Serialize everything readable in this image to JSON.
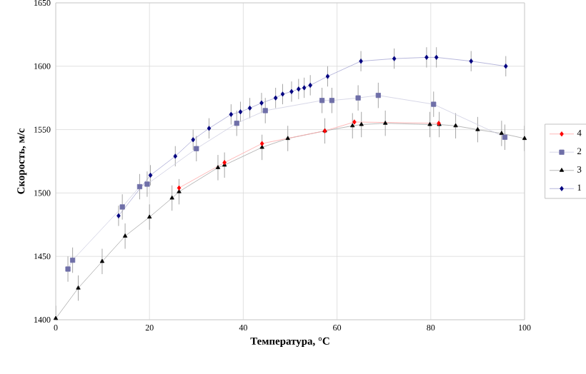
{
  "chart_data": {
    "type": "line",
    "xlabel": "Температура, °C",
    "ylabel": "Скорость, м/с",
    "xlim": [
      0,
      100
    ],
    "xticks": [
      0,
      20,
      40,
      60,
      80,
      100
    ],
    "ylim": [
      1400,
      1650
    ],
    "yticks": [
      1400,
      1450,
      1500,
      1550,
      1600,
      1650
    ],
    "grid": true,
    "legend": "right",
    "series": [
      {
        "name": "4",
        "color": "#ff0000",
        "marker": "diamond",
        "x": [
          26.3,
          36,
          44,
          57.4,
          63.7,
          81.7
        ],
        "values": [
          1504,
          1524,
          1539,
          1549,
          1556,
          1555
        ]
      },
      {
        "name": "2",
        "color": "#6f6fa8",
        "marker": "square",
        "x": [
          2.6,
          3.6,
          14.2,
          17.9,
          19.5,
          30,
          38.6,
          44.7,
          56.8,
          58.9,
          64.5,
          68.8,
          80.6,
          95.8
        ],
        "values": [
          1440,
          1447,
          1489,
          1505,
          1507,
          1535,
          1555,
          1565,
          1573,
          1573,
          1575,
          1577,
          1570,
          1544
        ],
        "errors": [
          10,
          10,
          10,
          10,
          10,
          10,
          10,
          10,
          10,
          10,
          10,
          10,
          10,
          10
        ]
      },
      {
        "name": "3",
        "color": "#000000",
        "marker": "triangle",
        "x": [
          0,
          4.8,
          9.9,
          14.8,
          20,
          24.8,
          26.3,
          34.6,
          36,
          44,
          49.5,
          57.4,
          63.3,
          65.2,
          70.3,
          79.8,
          81.8,
          85.3,
          90,
          95.1,
          100
        ],
        "values": [
          1401,
          1425,
          1446,
          1466,
          1481,
          1496,
          1501,
          1520,
          1522,
          1536,
          1543,
          1549,
          1553,
          1554,
          1555,
          1554,
          1554,
          1553,
          1550,
          1547,
          1543
        ],
        "errors": [
          10,
          10,
          10,
          10,
          10,
          10,
          10,
          10,
          10,
          10,
          10,
          10,
          10,
          10,
          10,
          10,
          10,
          10,
          10,
          10,
          10
        ]
      },
      {
        "name": "1",
        "color": "#000080",
        "marker": "diamond",
        "x": [
          13.4,
          20.2,
          25.5,
          29.3,
          32.7,
          37.4,
          39.4,
          41.4,
          43.9,
          46.9,
          48.4,
          50.3,
          51.8,
          53,
          54.3,
          58.0,
          65.1,
          72.2,
          79.1,
          81.2,
          88.6,
          96
        ],
        "values": [
          1482,
          1514,
          1529,
          1542,
          1551,
          1562,
          1564,
          1567,
          1571,
          1575,
          1578,
          1580,
          1582,
          1583,
          1585,
          1592,
          1604,
          1606,
          1607,
          1607,
          1604,
          1600
        ],
        "errors": [
          8,
          8,
          8,
          8,
          8,
          8,
          8,
          8,
          8,
          8,
          8,
          8,
          8,
          8,
          8,
          8,
          8,
          8,
          8,
          8,
          8,
          8
        ]
      }
    ]
  }
}
